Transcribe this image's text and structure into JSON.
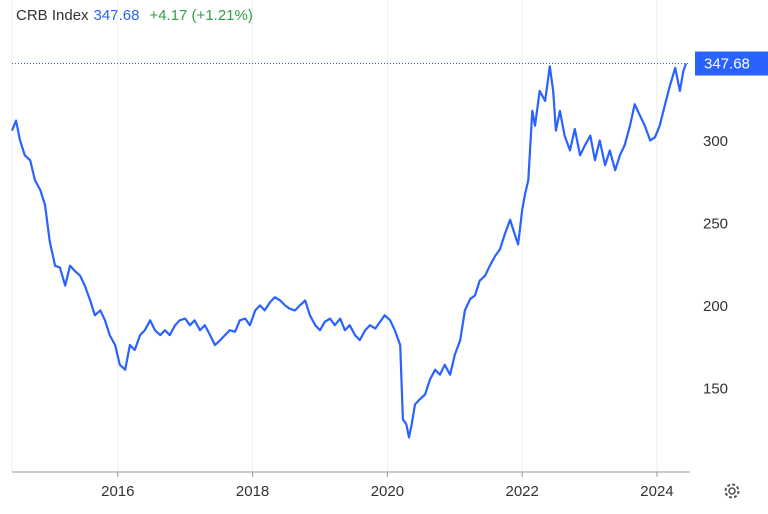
{
  "chart_data": {
    "type": "line",
    "title": "CRB Index",
    "price": "347.68",
    "change": "+4.17 (+1.21%)",
    "x": [
      2014.43,
      2014.49,
      2014.55,
      2014.62,
      2014.7,
      2014.77,
      2014.85,
      2014.92,
      2014.99,
      2015.07,
      2015.14,
      2015.22,
      2015.29,
      2015.36,
      2015.44,
      2015.51,
      2015.59,
      2015.66,
      2015.74,
      2015.81,
      2015.88,
      2015.96,
      2016.03,
      2016.11,
      2016.18,
      2016.25,
      2016.33,
      2016.4,
      2016.48,
      2016.55,
      2016.63,
      2016.7,
      2016.77,
      2016.85,
      2016.92,
      2017.0,
      2017.07,
      2017.14,
      2017.22,
      2017.29,
      2017.37,
      2017.44,
      2017.52,
      2017.59,
      2017.66,
      2017.74,
      2017.81,
      2017.89,
      2017.96,
      2018.04,
      2018.11,
      2018.18,
      2018.26,
      2018.33,
      2018.41,
      2018.48,
      2018.55,
      2018.63,
      2018.7,
      2018.78,
      2018.85,
      2018.93,
      2019.0,
      2019.07,
      2019.15,
      2019.22,
      2019.3,
      2019.37,
      2019.44,
      2019.52,
      2019.59,
      2019.67,
      2019.74,
      2019.82,
      2019.89,
      2019.96,
      2020.04,
      2020.11,
      2020.19,
      2020.23,
      2020.28,
      2020.32,
      2020.36,
      2020.41,
      2020.48,
      2020.56,
      2020.63,
      2020.71,
      2020.78,
      2020.85,
      2020.93,
      2021.0,
      2021.08,
      2021.15,
      2021.23,
      2021.3,
      2021.37,
      2021.45,
      2021.52,
      2021.6,
      2021.67,
      2021.74,
      2021.82,
      2021.89,
      2021.94,
      2022.0,
      2022.04,
      2022.09,
      2022.15,
      2022.19,
      2022.26,
      2022.34,
      2022.41,
      2022.46,
      2022.5,
      2022.56,
      2022.63,
      2022.71,
      2022.78,
      2022.86,
      2022.93,
      2023.01,
      2023.08,
      2023.15,
      2023.23,
      2023.3,
      2023.38,
      2023.45,
      2023.52,
      2023.6,
      2023.67,
      2023.75,
      2023.82,
      2023.9,
      2023.97,
      2024.04,
      2024.12,
      2024.19,
      2024.27,
      2024.34,
      2024.39,
      2024.43
    ],
    "series": [
      {
        "name": "CRB Index",
        "color": "#2962ff",
        "values": [
          307,
          313,
          301,
          292,
          289,
          277,
          271,
          262,
          240,
          225,
          224,
          213,
          225,
          222,
          219,
          213,
          204,
          195,
          198,
          192,
          183,
          177,
          165,
          162,
          177,
          174,
          183,
          186,
          192,
          186,
          183,
          186,
          183,
          189,
          192,
          193,
          189,
          192,
          186,
          189,
          183,
          177,
          180,
          183,
          186,
          185,
          192,
          193,
          189,
          198,
          201,
          198,
          203,
          206,
          204,
          201,
          199,
          198,
          201,
          204,
          195,
          189,
          186,
          191,
          193,
          189,
          193,
          186,
          189,
          183,
          180,
          186,
          189,
          187,
          191,
          195,
          192,
          186,
          177,
          132,
          129,
          121,
          129,
          141,
          144,
          147,
          156,
          162,
          159,
          165,
          159,
          171,
          180,
          198,
          205,
          207,
          216,
          219,
          225,
          231,
          235,
          244,
          253,
          244,
          238,
          259,
          268,
          277,
          319,
          310,
          331,
          325,
          346,
          331,
          307,
          319,
          304,
          295,
          308,
          292,
          298,
          304,
          289,
          301,
          286,
          295,
          283,
          292,
          298,
          310,
          323,
          316,
          310,
          301,
          303,
          310,
          323,
          334,
          345,
          331,
          343,
          347.68
        ]
      }
    ],
    "xlim": [
      2014.43,
      2024.49
    ],
    "xticks": [
      2016,
      2018,
      2020,
      2022,
      2024
    ],
    "ylim": [
      100,
      368
    ],
    "yticks": [
      150,
      200,
      250,
      300
    ],
    "grid": true
  }
}
